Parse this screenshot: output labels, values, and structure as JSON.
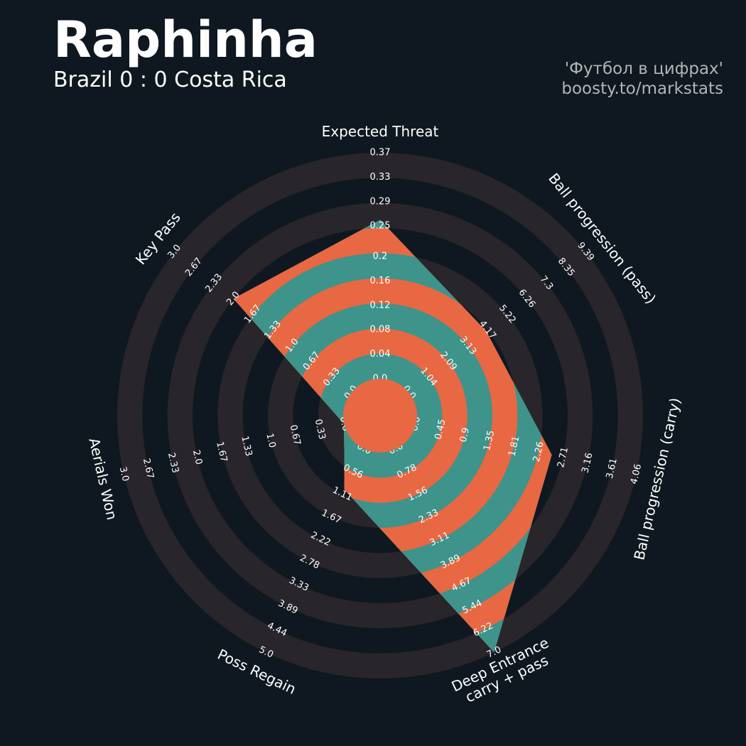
{
  "chart_data": {
    "type": "radar",
    "title": "Raphinha",
    "subtitle": "Brazil 0 : 0 Costa Rica",
    "credits": [
      "'Футбол в цифрах'",
      "boosty.to/markstats"
    ],
    "params": [
      "Expected Threat",
      "Ball progression (pass)",
      "Ball progression (carry)",
      "Deep Entrance\ncarry + pass",
      "Poss Regain",
      "Aerials Won",
      "Key Pass"
    ],
    "values": [
      0.26,
      4.1,
      2.5,
      7.0,
      1.0,
      0,
      2.0
    ],
    "colors": {
      "background": "#0f1820",
      "ring": "#28252b",
      "inside_a": "#3e938b",
      "inside_b": "#e76843"
    },
    "axes": [
      {
        "lim": [
          0,
          0.37
        ],
        "ticks": [
          {
            "value": 0,
            "label": "0.0"
          },
          0.04,
          0.08,
          0.12,
          0.16,
          0.2,
          0.25,
          0.29,
          0.33,
          0.37
        ]
      },
      {
        "lim": [
          0,
          9.39
        ],
        "ticks": [
          {
            "value": 0,
            "label": "0.0"
          },
          1.04,
          2.09,
          3.13,
          4.17,
          5.22,
          6.26,
          7.3,
          8.35,
          9.39
        ]
      },
      {
        "lim": [
          0,
          4.06
        ],
        "ticks": [
          {
            "value": 0,
            "label": "0.0"
          },
          0.45,
          0.9,
          1.35,
          1.81,
          2.26,
          2.71,
          3.16,
          3.61,
          4.06
        ]
      },
      {
        "lim": [
          0,
          7
        ],
        "ticks": [
          {
            "value": 0,
            "label": "0.0"
          },
          0.78,
          1.56,
          2.33,
          3.11,
          3.89,
          4.67,
          5.44,
          6.22,
          {
            "value": 7,
            "label": "7.0"
          }
        ]
      },
      {
        "lim": [
          0,
          5
        ],
        "ticks": [
          {
            "value": 0,
            "label": "0.0"
          },
          0.56,
          1.11,
          1.67,
          2.22,
          2.78,
          3.33,
          3.89,
          4.44,
          {
            "value": 5,
            "label": "5.0"
          }
        ]
      },
      {
        "lim": [
          0,
          3
        ],
        "ticks": [
          {
            "value": 0,
            "label": "0.0"
          },
          0.33,
          0.67,
          {
            "value": 1,
            "label": "1.0"
          },
          1.33,
          1.67,
          {
            "value": 2,
            "label": "2.0"
          },
          2.33,
          2.67,
          {
            "value": 3,
            "label": "3.0"
          }
        ]
      },
      {
        "lim": [
          0,
          3
        ],
        "ticks": [
          {
            "value": 0,
            "label": "0.0"
          },
          0.33,
          0.67,
          {
            "value": 1,
            "label": "1.0"
          },
          1.33,
          1.67,
          {
            "value": 2,
            "label": "2.0"
          },
          2.33,
          2.67,
          {
            "value": 3,
            "label": "3.0"
          }
        ]
      }
    ]
  }
}
